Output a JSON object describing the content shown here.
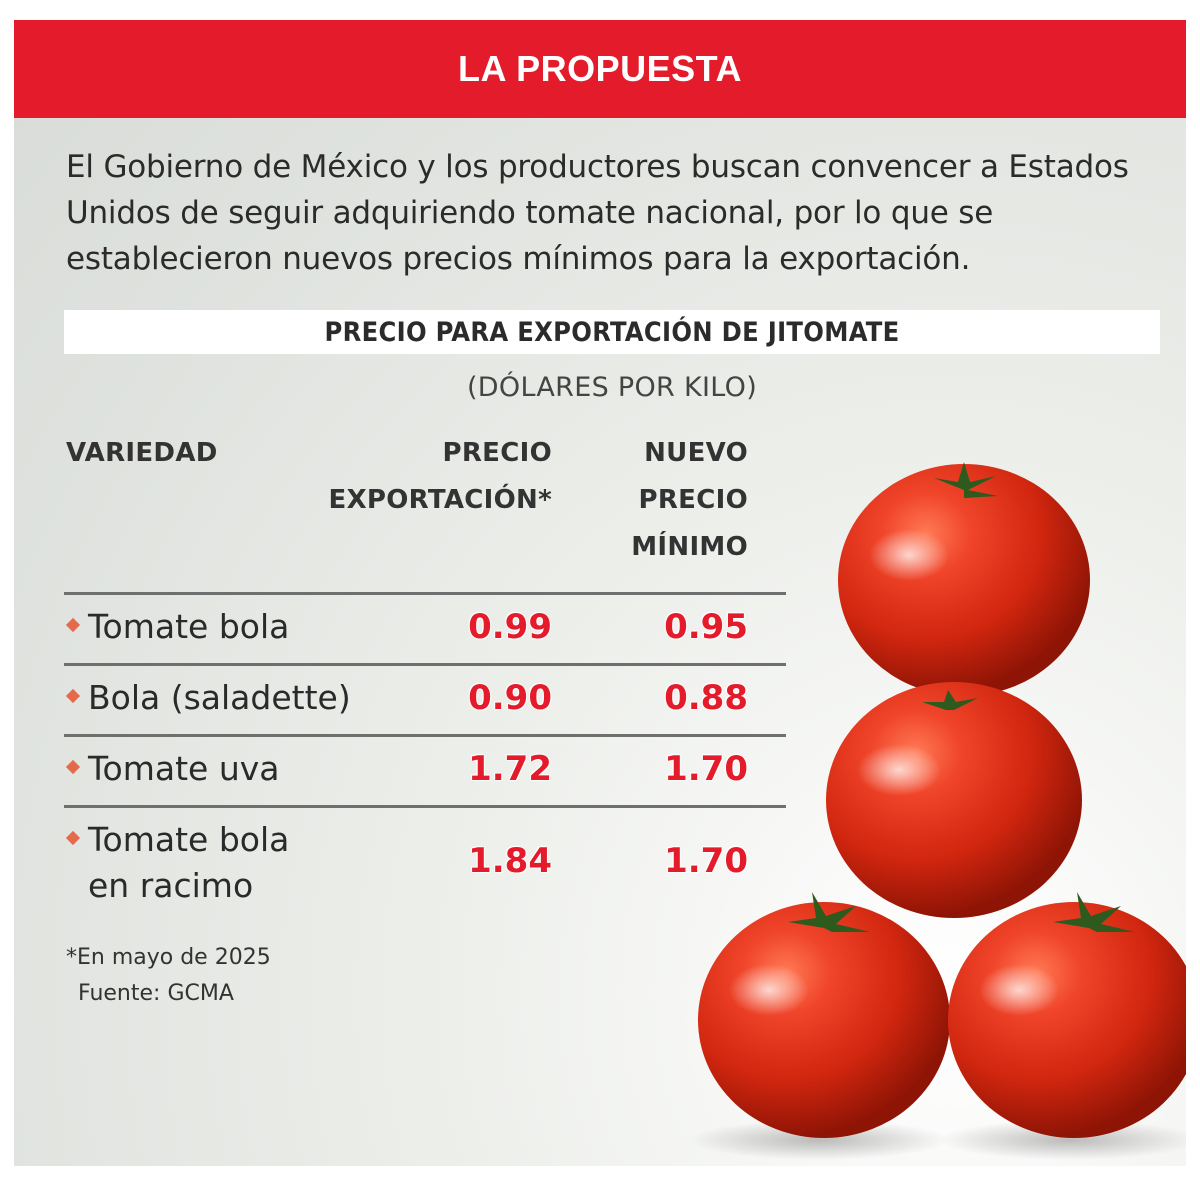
{
  "header": {
    "title": "LA PROPUESTA"
  },
  "intro": "El Gobierno de México y los productores buscan convencer a Estados Unidos de seguir adquiriendo tomate nacional, por lo que se establecieron nuevos precios mínimos para la exportación.",
  "chart_data": {
    "type": "table",
    "title": "PRECIO PARA EXPORTACIÓN DE JITOMATE",
    "unit": "(DÓLARES POR KILO)",
    "columns": [
      "VARIEDAD",
      "PRECIO EXPORTACIÓN*",
      "NUEVO PRECIO MÍNIMO"
    ],
    "rows": [
      {
        "variedad": "Tomate bola",
        "precio_exportacion": "0.99",
        "nuevo_precio_minimo": "0.95"
      },
      {
        "variedad": "Bola (saladette)",
        "precio_exportacion": "0.90",
        "nuevo_precio_minimo": "0.88"
      },
      {
        "variedad": "Tomate uva",
        "precio_exportacion": "1.72",
        "nuevo_precio_minimo": "1.70"
      },
      {
        "variedad": "Tomate bola en racimo",
        "precio_exportacion": "1.84",
        "nuevo_precio_minimo": "1.70"
      }
    ],
    "footnote": "*En mayo de 2025",
    "source": "Fuente: GCMA"
  },
  "colors": {
    "accent": "#e31b2a",
    "bullet": "#e36a4a",
    "background": "#dfe2de"
  },
  "illustration": "stacked-tomatoes-image"
}
